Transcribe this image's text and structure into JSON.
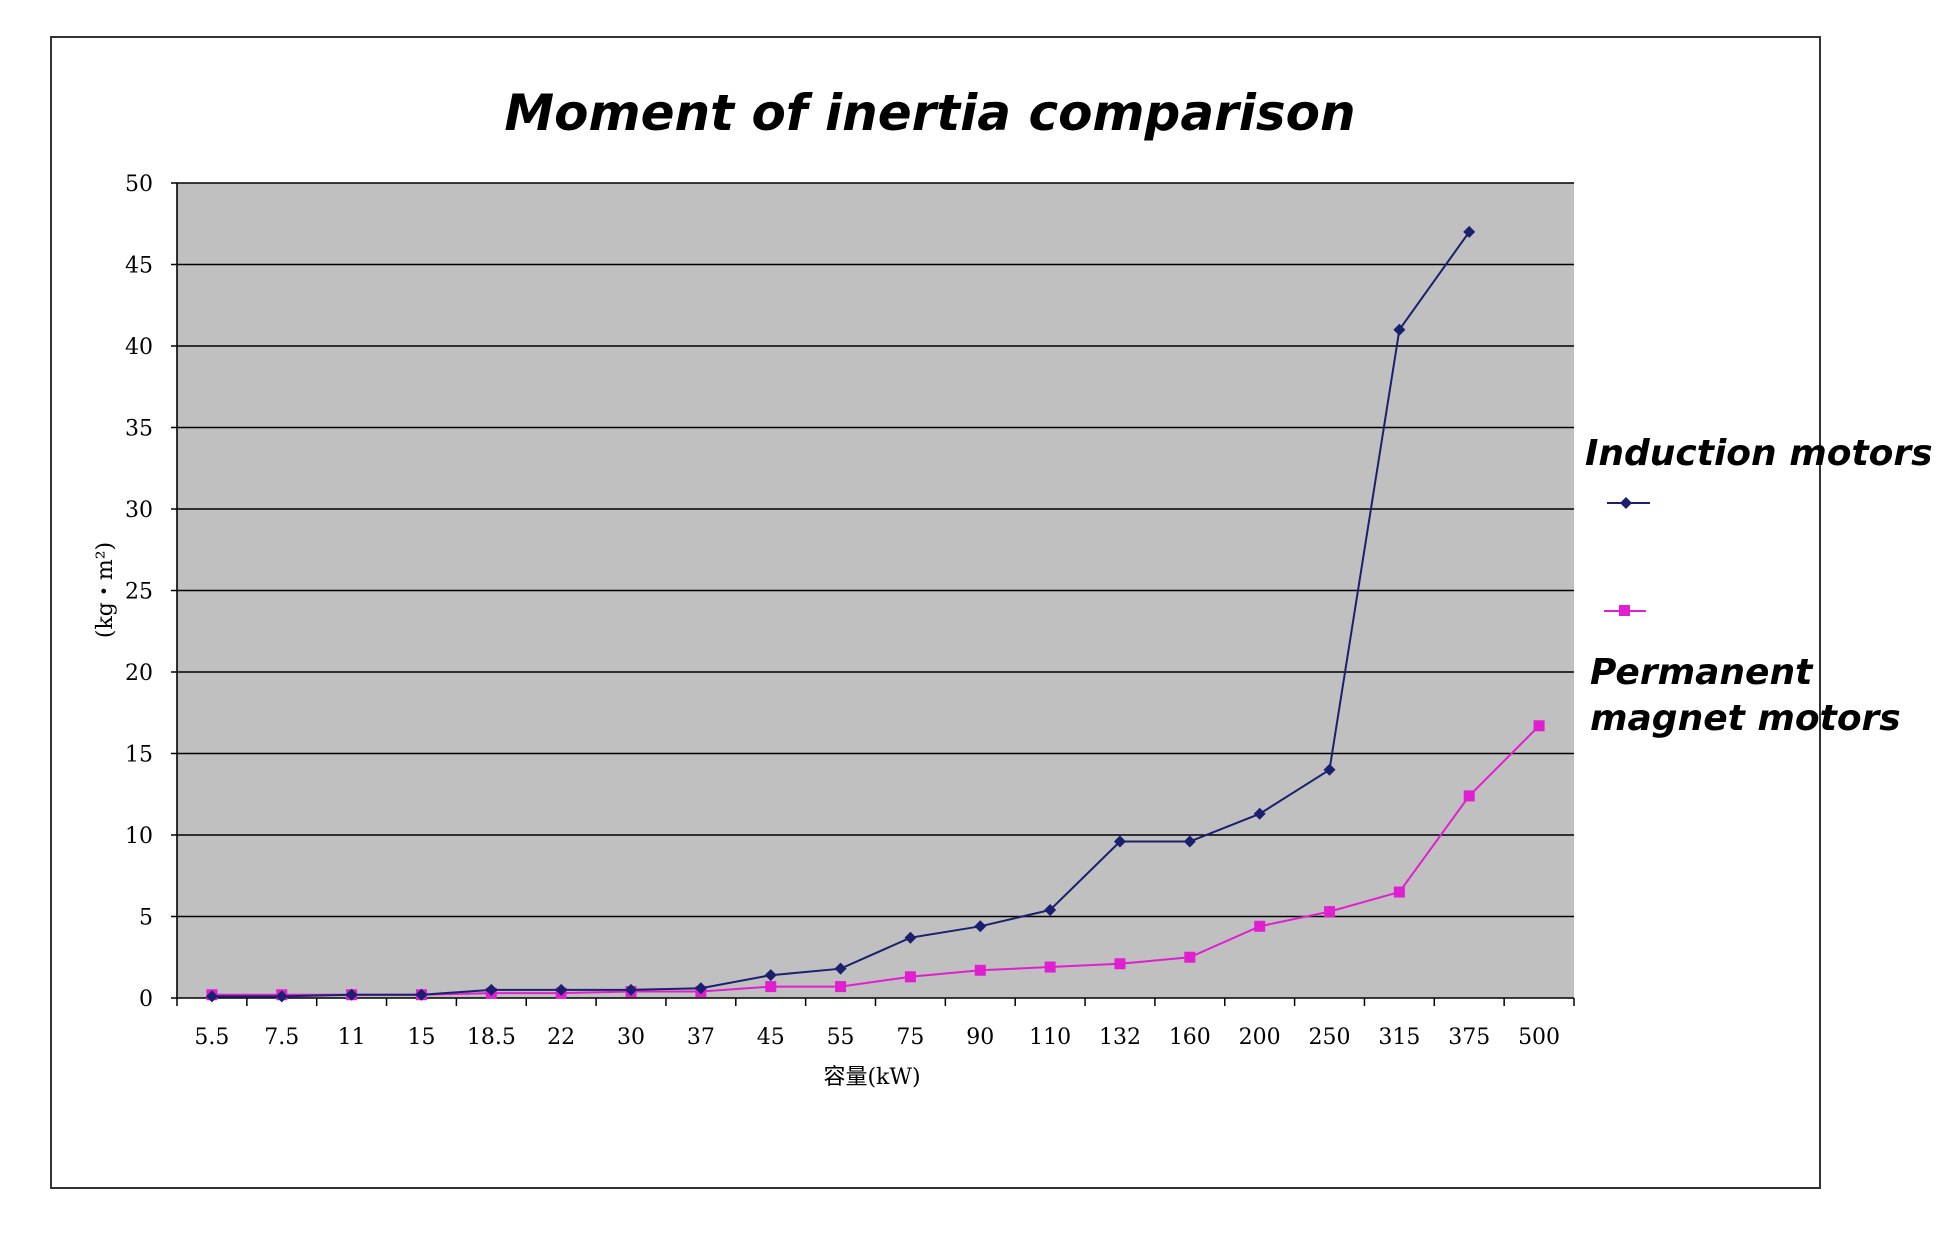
{
  "chart_data": {
    "type": "line",
    "title": "Moment of inertia comparison",
    "xlabel": "容量(kW)",
    "ylabel": "(kg・m²)",
    "categories": [
      "5.5",
      "7.5",
      "11",
      "15",
      "18.5",
      "22",
      "30",
      "37",
      "45",
      "55",
      "75",
      "90",
      "110",
      "132",
      "160",
      "200",
      "250",
      "315",
      "375",
      "500"
    ],
    "ylim": [
      0,
      50
    ],
    "yticks": [
      "0",
      "5",
      "10",
      "15",
      "20",
      "25",
      "30",
      "35",
      "40",
      "45",
      "50"
    ],
    "grid": true,
    "legend_position": "right",
    "series": [
      {
        "name": "Induction motors",
        "color": "#1a1f6e",
        "marker": "diamond",
        "values": [
          0.1,
          0.1,
          0.2,
          0.2,
          0.5,
          0.5,
          0.5,
          0.6,
          1.4,
          1.8,
          3.7,
          4.4,
          5.4,
          9.6,
          9.6,
          11.3,
          14.0,
          41.0,
          47.0,
          null
        ]
      },
      {
        "name": "Permanent magnet motors",
        "color": "#e020d0",
        "marker": "square",
        "values": [
          0.2,
          0.2,
          0.2,
          0.2,
          0.3,
          0.3,
          0.4,
          0.4,
          0.7,
          0.7,
          1.3,
          1.7,
          1.9,
          2.1,
          2.5,
          4.4,
          5.3,
          6.5,
          12.4,
          16.7
        ]
      }
    ]
  }
}
